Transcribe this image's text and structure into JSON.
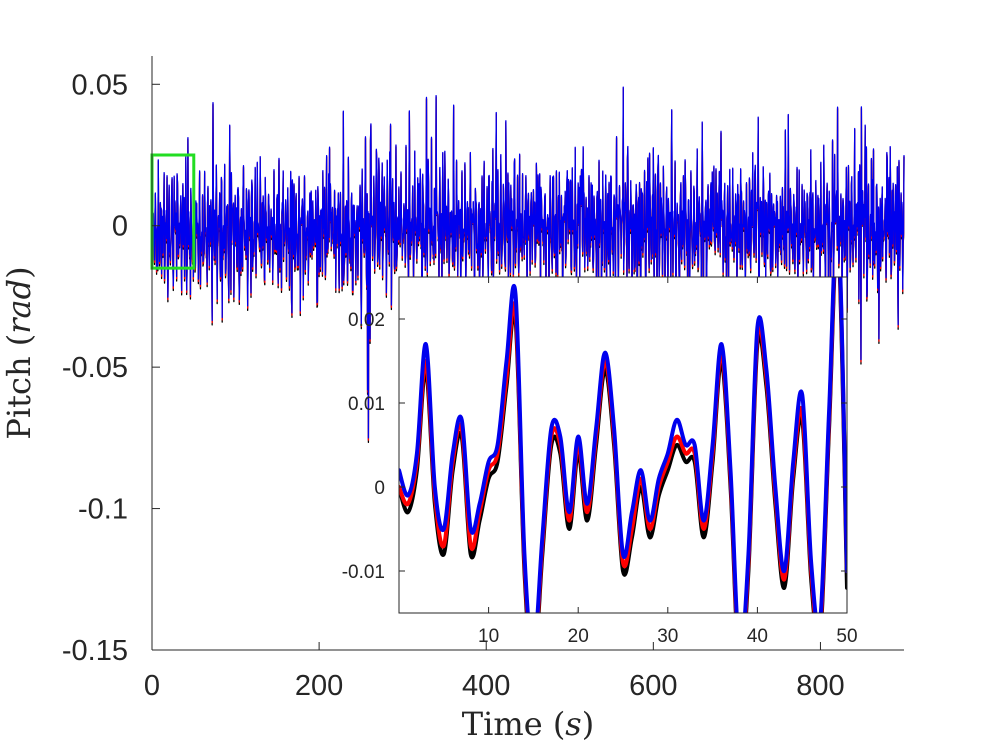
{
  "chart_data": [
    {
      "type": "line",
      "role": "main",
      "xlabel": "Time (s)",
      "xlabel_text": "Time ",
      "xlabel_unit": "s",
      "ylabel": "Pitch (rad)",
      "ylabel_text": "Pitch ",
      "ylabel_unit": "rad",
      "xlim": [
        0,
        900
      ],
      "ylim": [
        -0.15,
        0.06
      ],
      "xticks": [
        0,
        200,
        400,
        600,
        800
      ],
      "xtick_labels": [
        "0",
        "200",
        "400",
        "600",
        "800"
      ],
      "yticks": [
        0.05,
        0,
        -0.05,
        -0.1,
        -0.15
      ],
      "ytick_labels": [
        "0.05",
        "0",
        "-0.05",
        "-0.1",
        "-0.15"
      ],
      "grid": false,
      "legend": "none",
      "highlight_box": {
        "color": "#22dd22",
        "x": [
          0,
          50
        ],
        "y": [
          -0.015,
          0.025
        ]
      },
      "signal": {
        "t_end": 900,
        "step": 0.5,
        "peak_max": 0.049,
        "trough_min": -0.075,
        "typical_range": [
          -0.025,
          0.03
        ]
      },
      "series": [
        {
          "color": "#000000"
        },
        {
          "color": "#ff0000"
        },
        {
          "color": "#0000ee"
        }
      ]
    },
    {
      "type": "line",
      "role": "inset",
      "xlim": [
        0,
        50
      ],
      "ylim": [
        -0.015,
        0.025
      ],
      "xticks": [
        10,
        20,
        30,
        40,
        50
      ],
      "xtick_labels": [
        "10",
        "20",
        "30",
        "40",
        "50"
      ],
      "yticks": [
        0.02,
        0.01,
        0,
        -0.01
      ],
      "ytick_labels": [
        "0.02",
        "0.01",
        "0",
        "-0.01"
      ],
      "grid": false,
      "x": [
        0,
        1,
        2,
        3,
        4,
        5,
        6,
        7,
        8,
        9,
        10,
        11,
        12,
        13,
        14,
        15,
        16,
        17,
        18,
        19,
        20,
        21,
        22,
        23,
        24,
        25,
        26,
        27,
        28,
        29,
        30,
        31,
        32,
        33,
        34,
        35,
        36,
        37,
        38,
        39,
        40,
        41,
        42,
        43,
        44,
        45,
        46,
        47,
        48,
        49,
        50
      ],
      "series": [
        {
          "color": "#000000",
          "values": [
            0.0,
            -0.003,
            0.002,
            0.014,
            -0.002,
            -0.008,
            0.002,
            0.006,
            -0.008,
            -0.004,
            0.001,
            0.003,
            0.012,
            0.02,
            -0.01,
            -0.022,
            -0.008,
            0.005,
            0.004,
            -0.005,
            0.004,
            -0.004,
            0.005,
            0.014,
            0.005,
            -0.01,
            -0.006,
            0.0,
            -0.006,
            -0.001,
            0.002,
            0.005,
            0.003,
            0.003,
            -0.006,
            0.003,
            0.015,
            0.0,
            -0.022,
            -0.01,
            0.017,
            0.012,
            -0.002,
            -0.012,
            0.001,
            0.008,
            -0.011,
            -0.018,
            0.007,
            0.03,
            -0.012
          ]
        },
        {
          "color": "#ff0000",
          "values": [
            0.0,
            -0.002,
            0.003,
            0.015,
            -0.001,
            -0.007,
            0.003,
            0.007,
            -0.007,
            -0.003,
            0.002,
            0.004,
            0.013,
            0.021,
            -0.009,
            -0.021,
            -0.007,
            0.006,
            0.005,
            -0.004,
            0.005,
            -0.003,
            0.006,
            0.015,
            0.006,
            -0.009,
            -0.005,
            0.001,
            -0.005,
            0.0,
            0.003,
            0.006,
            0.004,
            0.004,
            -0.005,
            0.004,
            0.016,
            0.001,
            -0.021,
            -0.009,
            0.018,
            0.013,
            -0.001,
            -0.011,
            0.002,
            0.009,
            -0.01,
            -0.017,
            0.008,
            0.031,
            -0.01
          ]
        },
        {
          "color": "#0000ee",
          "values": [
            0.002,
            -0.001,
            0.004,
            0.017,
            0.0,
            -0.005,
            0.004,
            0.008,
            -0.005,
            -0.002,
            0.003,
            0.005,
            0.015,
            0.023,
            -0.008,
            -0.02,
            -0.006,
            0.007,
            0.006,
            -0.003,
            0.006,
            -0.002,
            0.007,
            0.016,
            0.007,
            -0.008,
            -0.003,
            0.002,
            -0.004,
            0.001,
            0.004,
            0.008,
            0.005,
            0.005,
            -0.004,
            0.005,
            0.017,
            0.002,
            -0.02,
            -0.008,
            0.019,
            0.014,
            0.0,
            -0.01,
            0.003,
            0.011,
            -0.009,
            -0.016,
            0.009,
            0.032,
            -0.01
          ]
        }
      ]
    }
  ]
}
